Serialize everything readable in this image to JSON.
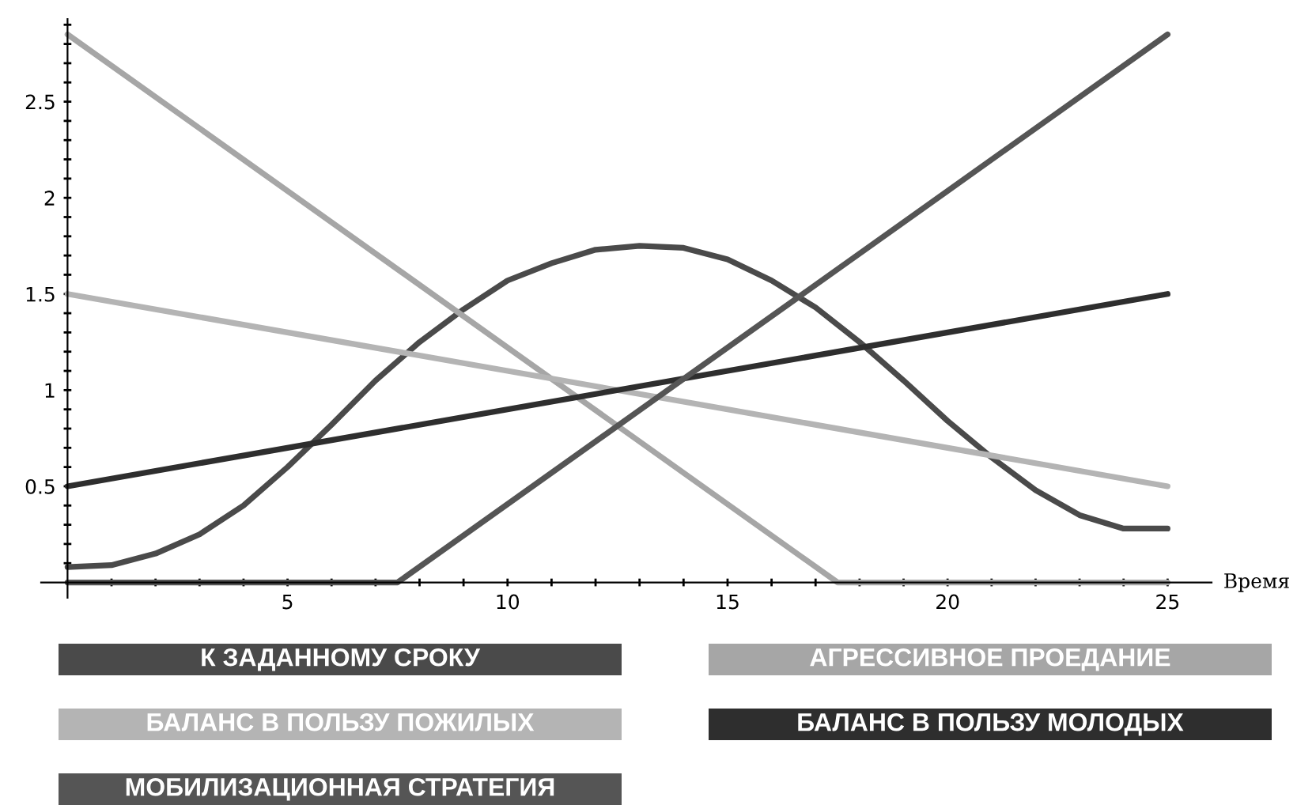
{
  "chart_data": {
    "type": "line",
    "xlabel": "Время",
    "xlim": [
      -0.6,
      26
    ],
    "ylim": [
      -0.08,
      2.93
    ],
    "xticks": [
      {
        "value": 1,
        "label": null
      },
      {
        "value": 2,
        "label": null
      },
      {
        "value": 3,
        "label": null
      },
      {
        "value": 4,
        "label": null
      },
      5,
      {
        "value": 6,
        "label": null
      },
      {
        "value": 7,
        "label": null
      },
      {
        "value": 8,
        "label": null
      },
      {
        "value": 9,
        "label": null
      },
      10,
      {
        "value": 11,
        "label": null
      },
      {
        "value": 12,
        "label": null
      },
      {
        "value": 13,
        "label": null
      },
      {
        "value": 14,
        "label": null
      },
      15,
      {
        "value": 16,
        "label": null
      },
      {
        "value": 17,
        "label": null
      },
      {
        "value": 18,
        "label": null
      },
      {
        "value": 19,
        "label": null
      },
      20,
      {
        "value": 21,
        "label": null
      },
      {
        "value": 22,
        "label": null
      },
      {
        "value": 23,
        "label": null
      },
      {
        "value": 24,
        "label": null
      },
      25
    ],
    "yticks": [
      {
        "value": 0.1,
        "label": null
      },
      {
        "value": 0.2,
        "label": null
      },
      {
        "value": 0.3,
        "label": null
      },
      {
        "value": 0.4,
        "label": null
      },
      0.5,
      {
        "value": 0.6,
        "label": null
      },
      {
        "value": 0.7,
        "label": null
      },
      {
        "value": 0.8,
        "label": null
      },
      {
        "value": 0.9,
        "label": null
      },
      1,
      {
        "value": 1.1,
        "label": null
      },
      {
        "value": 1.2,
        "label": null
      },
      {
        "value": 1.3,
        "label": null
      },
      {
        "value": 1.4,
        "label": null
      },
      1.5,
      {
        "value": 1.6,
        "label": null
      },
      {
        "value": 1.7,
        "label": null
      },
      {
        "value": 1.8,
        "label": null
      },
      {
        "value": 1.9,
        "label": null
      },
      2,
      {
        "value": 2.1,
        "label": null
      },
      {
        "value": 2.2,
        "label": null
      },
      {
        "value": 2.3,
        "label": null
      },
      {
        "value": 2.4,
        "label": null
      },
      2.5,
      {
        "value": 2.6,
        "label": null
      },
      {
        "value": 2.7,
        "label": null
      },
      {
        "value": 2.8,
        "label": null
      },
      {
        "value": 2.9,
        "label": null
      }
    ],
    "grid": false,
    "legend": "bottom",
    "marker": "none",
    "line_style": "solid",
    "series": [
      {
        "name": "К ЗАДАННОМУ СРОКУ",
        "color": "#4a4a4a",
        "x": [
          0,
          1,
          2,
          3,
          4,
          5,
          6,
          7,
          8,
          9,
          10,
          11,
          12,
          13,
          14,
          15,
          16,
          17,
          18,
          19,
          20,
          21,
          22,
          23,
          24,
          25
        ],
        "values": [
          0.08,
          0.09,
          0.15,
          0.25,
          0.4,
          0.6,
          0.82,
          1.05,
          1.25,
          1.42,
          1.57,
          1.66,
          1.73,
          1.75,
          1.74,
          1.68,
          1.57,
          1.43,
          1.25,
          1.05,
          0.84,
          0.65,
          0.48,
          0.35,
          0.28,
          0.28
        ]
      },
      {
        "name": "АГРЕССИВНОЕ ПРОЕДАНИЕ",
        "color": "#a6a6a6",
        "x": [
          0,
          17.5,
          25
        ],
        "values": [
          2.85,
          0,
          0
        ]
      },
      {
        "name": "БАЛАНС В ПОЛЬЗУ ПОЖИЛЫХ",
        "color": "#b4b4b4",
        "x": [
          0,
          25
        ],
        "values": [
          1.5,
          0.5
        ]
      },
      {
        "name": "БАЛАНС В ПОЛЬЗУ МОЛОДЫХ",
        "color": "#2e2e2e",
        "x": [
          0,
          25
        ],
        "values": [
          0.5,
          1.5
        ]
      },
      {
        "name": "МОБИЛИЗАЦИОННАЯ СТРАТЕГИЯ",
        "color": "#555555",
        "x": [
          0,
          7.5,
          25
        ],
        "values": [
          0,
          0,
          2.85
        ]
      }
    ]
  }
}
